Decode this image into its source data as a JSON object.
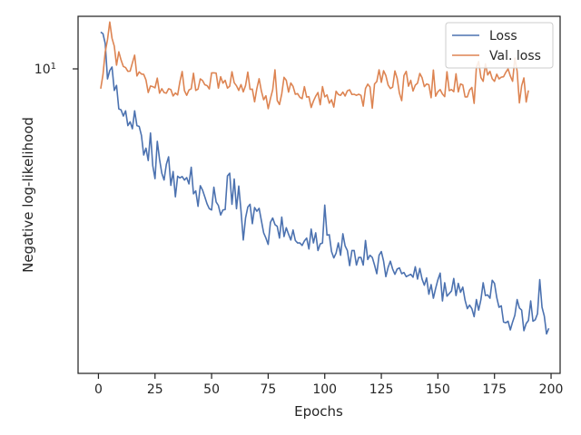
{
  "chart_data": {
    "type": "line",
    "title": "",
    "xlabel": "Epochs",
    "ylabel": "Negative log-likelihood",
    "yscale": "log",
    "xlim": [
      -9,
      204
    ],
    "ylim": [
      1.75,
      12.8
    ],
    "x_ticks": [
      0,
      25,
      50,
      75,
      100,
      125,
      150,
      175,
      200
    ],
    "y_tick_label": "10^1",
    "grid": false,
    "legend_position": "top-right",
    "series": [
      {
        "name": "Loss",
        "color": "#4c72b0",
        "x_start": 1,
        "x_step": 1,
        "values": [
          11.72,
          11.62,
          11.0,
          9.03,
          9.46,
          9.65,
          8.47,
          8.71,
          7.64,
          7.6,
          7.34,
          7.56,
          6.96,
          7.11,
          6.84,
          7.56,
          6.96,
          6.93,
          6.59,
          5.91,
          6.14,
          5.73,
          6.68,
          5.57,
          5.18,
          6.38,
          5.77,
          5.34,
          5.14,
          5.61,
          5.85,
          4.99,
          5.39,
          4.68,
          5.25,
          5.2,
          5.24,
          5.14,
          5.21,
          5.03,
          5.52,
          4.76,
          4.84,
          4.44,
          4.98,
          4.86,
          4.68,
          4.5,
          4.38,
          4.35,
          4.94,
          4.55,
          4.46,
          4.23,
          4.35,
          4.36,
          5.26,
          5.34,
          4.49,
          5.17,
          4.38,
          4.97,
          4.33,
          3.68,
          4.16,
          4.42,
          4.49,
          4.03,
          4.41,
          4.32,
          4.39,
          4.1,
          3.83,
          3.72,
          3.59,
          4.06,
          4.16,
          4.01,
          3.97,
          3.72,
          4.18,
          3.75,
          3.94,
          3.8,
          3.68,
          3.89,
          3.67,
          3.62,
          3.62,
          3.57,
          3.66,
          3.72,
          3.5,
          3.91,
          3.62,
          3.83,
          3.47,
          3.6,
          3.62,
          4.47,
          3.78,
          3.79,
          3.45,
          3.33,
          3.42,
          3.62,
          3.38,
          3.81,
          3.56,
          3.47,
          3.19,
          3.47,
          3.47,
          3.2,
          3.34,
          3.34,
          3.2,
          3.67,
          3.3,
          3.38,
          3.34,
          3.2,
          3.05,
          3.38,
          3.45,
          3.27,
          3.0,
          3.16,
          3.27,
          3.13,
          3.04,
          3.13,
          3.15,
          3.05,
          3.07,
          3.0,
          3.02,
          3.04,
          2.99,
          3.17,
          2.96,
          3.14,
          2.96,
          2.86,
          2.98,
          2.72,
          2.87,
          2.66,
          2.81,
          2.95,
          3.06,
          2.62,
          2.9,
          2.69,
          2.73,
          2.77,
          2.97,
          2.7,
          2.89,
          2.75,
          2.83,
          2.63,
          2.51,
          2.56,
          2.51,
          2.4,
          2.64,
          2.49,
          2.64,
          2.9,
          2.7,
          2.71,
          2.66,
          2.94,
          2.89,
          2.67,
          2.53,
          2.55,
          2.33,
          2.32,
          2.34,
          2.23,
          2.33,
          2.42,
          2.64,
          2.52,
          2.49,
          2.22,
          2.31,
          2.35,
          2.62,
          2.34,
          2.36,
          2.44,
          2.95,
          2.53,
          2.41,
          2.18,
          2.25
        ]
      },
      {
        "name": "Val. loss",
        "color": "#dd8452",
        "x_start": 1,
        "x_step": 1,
        "values": [
          8.55,
          9.24,
          10.5,
          11.23,
          12.4,
          11.33,
          10.84,
          9.75,
          10.5,
          10.03,
          9.68,
          9.62,
          9.42,
          9.43,
          9.87,
          10.31,
          9.18,
          9.39,
          9.28,
          9.26,
          8.98,
          8.37,
          8.68,
          8.65,
          8.59,
          9.07,
          8.34,
          8.55,
          8.37,
          8.34,
          8.55,
          8.51,
          8.21,
          8.35,
          8.26,
          8.89,
          9.41,
          8.46,
          8.24,
          8.49,
          8.55,
          9.32,
          8.47,
          8.53,
          9.03,
          8.95,
          8.74,
          8.7,
          8.54,
          9.34,
          9.34,
          9.33,
          8.58,
          9.14,
          8.82,
          8.96,
          8.58,
          8.67,
          9.4,
          8.84,
          8.69,
          8.47,
          8.75,
          8.4,
          8.7,
          9.38,
          8.52,
          8.53,
          7.95,
          8.56,
          9.04,
          8.44,
          8.04,
          8.22,
          7.65,
          8.09,
          8.5,
          9.5,
          8.01,
          7.83,
          8.31,
          9.11,
          8.96,
          8.39,
          8.83,
          8.66,
          8.29,
          8.32,
          8.15,
          8.09,
          8.65,
          8.16,
          8.18,
          7.7,
          7.98,
          8.2,
          8.37,
          7.82,
          8.65,
          8.17,
          8.26,
          7.89,
          8.04,
          7.72,
          8.43,
          8.28,
          8.24,
          8.39,
          8.21,
          8.45,
          8.5,
          8.28,
          8.29,
          8.24,
          8.29,
          8.24,
          7.76,
          8.56,
          8.77,
          8.63,
          7.67,
          8.78,
          8.9,
          9.5,
          8.86,
          9.45,
          9.2,
          8.73,
          8.56,
          8.63,
          9.44,
          9.05,
          8.34,
          8.0,
          9.2,
          9.42,
          8.67,
          8.96,
          8.44,
          8.72,
          8.82,
          9.31,
          9.09,
          8.65,
          8.78,
          8.74,
          8.13,
          9.49,
          8.2,
          8.41,
          8.51,
          8.3,
          8.18,
          9.4,
          8.46,
          8.51,
          8.41,
          9.29,
          8.4,
          8.78,
          8.73,
          8.17,
          8.17,
          8.49,
          8.61,
          7.88,
          9.62,
          9.95,
          9.1,
          8.91,
          9.82,
          9.23,
          9.42,
          9.04,
          8.91,
          9.27,
          9.03,
          9.12,
          9.14,
          9.37,
          9.55,
          9.18,
          8.91,
          10.14,
          9.43,
          7.9,
          8.69,
          9.08,
          7.94,
          8.47
        ]
      }
    ]
  }
}
